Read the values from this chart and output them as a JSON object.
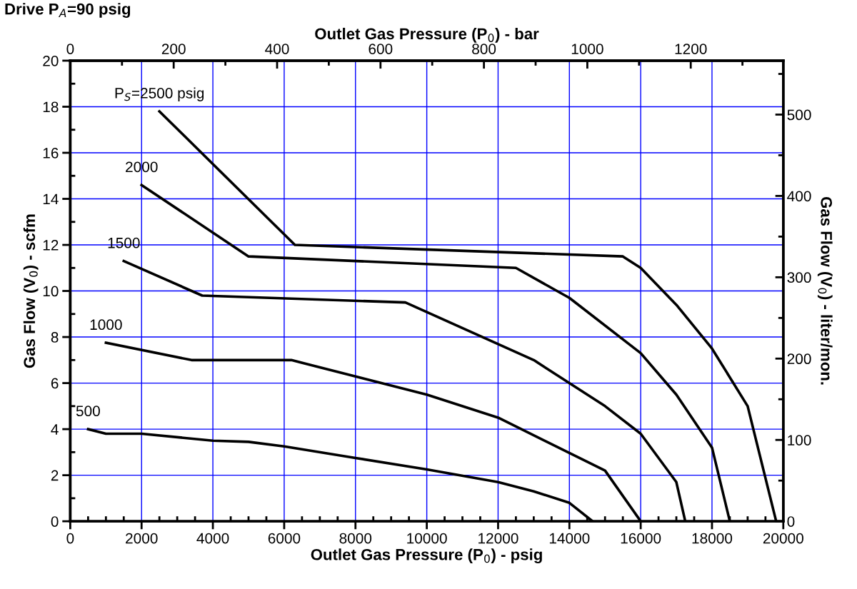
{
  "chart_data": {
    "type": "line",
    "xlabel": "Outlet Gas Pressure (P$_{0}$) - psig",
    "x2label": "Outlet Gas Pressure (P$_{0}$) - bar",
    "ylabel": "Gas Flow (V$_{0}$) - scfm",
    "y2label": "Gas Flow (V$_{0}$) - liter/mon.",
    "annotations": [
      "Drive P$_{A}$=90 psig"
    ],
    "xlim": [
      0,
      20000
    ],
    "xticks": [
      0,
      2000,
      4000,
      6000,
      8000,
      10000,
      12000,
      14000,
      16000,
      18000,
      20000
    ],
    "x2lim": [
      0,
      1379
    ],
    "x2ticks": [
      0,
      200,
      400,
      600,
      800,
      1000,
      1200
    ],
    "ylim": [
      0,
      20
    ],
    "yticks": [
      0,
      2,
      4,
      6,
      8,
      10,
      12,
      14,
      16,
      18,
      20
    ],
    "y2lim": [
      0,
      566.3
    ],
    "y2ticks": [
      0,
      100,
      200,
      300,
      400,
      500
    ],
    "grid": true,
    "legend": false,
    "marker": "none",
    "line_style": "solid",
    "series": [
      {
        "name": "P$_{S}$=2500 psig",
        "color": "#000000",
        "x": [
          2500,
          6300,
          15500,
          16000,
          17000,
          18000,
          19000,
          19800
        ],
        "values": [
          17.8,
          12.0,
          11.5,
          11.0,
          9.4,
          7.5,
          5.0,
          0
        ]
      },
      {
        "name": "2000",
        "color": "#000000",
        "x": [
          2000,
          5000,
          12500,
          14000,
          16000,
          17000,
          18000,
          18500
        ],
        "values": [
          14.6,
          11.5,
          11.0,
          9.7,
          7.3,
          5.5,
          3.2,
          0
        ]
      },
      {
        "name": "1500",
        "color": "#000000",
        "x": [
          1500,
          3700,
          9400,
          13000,
          15000,
          16000,
          17000,
          17250
        ],
        "values": [
          11.3,
          9.8,
          9.5,
          7.0,
          5.0,
          3.8,
          1.7,
          0
        ]
      },
      {
        "name": "1000",
        "color": "#000000",
        "x": [
          1000,
          3400,
          6200,
          10000,
          12000,
          15000,
          16000
        ],
        "values": [
          7.75,
          7.0,
          7.0,
          5.5,
          4.5,
          2.2,
          0
        ]
      },
      {
        "name": "500",
        "color": "#000000",
        "x": [
          500,
          1000,
          2000,
          4000,
          5000,
          6000,
          8000,
          10000,
          12000,
          13000,
          14000,
          14650
        ],
        "values": [
          4.0,
          3.8,
          3.8,
          3.5,
          3.45,
          3.25,
          2.75,
          2.25,
          1.7,
          1.3,
          0.8,
          0
        ]
      }
    ]
  }
}
